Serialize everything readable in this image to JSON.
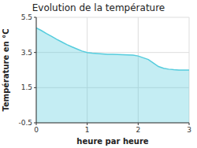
{
  "chart_data": {
    "type": "area",
    "title": "Evolution de la température",
    "x_label": "heure par heure",
    "y_label": "Température en °C",
    "x": [
      0,
      0.1,
      0.2,
      0.3,
      0.4,
      0.5,
      0.6,
      0.7,
      0.8,
      0.9,
      1.0,
      1.1,
      1.2,
      1.3,
      1.4,
      1.5,
      1.6,
      1.7,
      1.8,
      1.9,
      2.0,
      2.1,
      2.2,
      2.3,
      2.4,
      2.5,
      2.6,
      2.7,
      2.8,
      2.9,
      3.0
    ],
    "values": [
      4.9,
      4.75,
      4.58,
      4.42,
      4.25,
      4.1,
      3.95,
      3.82,
      3.7,
      3.58,
      3.5,
      3.46,
      3.44,
      3.42,
      3.4,
      3.39,
      3.38,
      3.37,
      3.36,
      3.35,
      3.3,
      3.2,
      3.1,
      2.9,
      2.7,
      2.6,
      2.55,
      2.52,
      2.5,
      2.5,
      2.5
    ],
    "color": "#55ccdd",
    "xlim": [
      0,
      3
    ],
    "ylim": [
      -0.5,
      5.5
    ],
    "xticks": [
      0,
      1,
      2,
      3
    ],
    "yticks": [
      -0.5,
      1.5,
      3.5,
      5.5
    ],
    "grid": true
  }
}
